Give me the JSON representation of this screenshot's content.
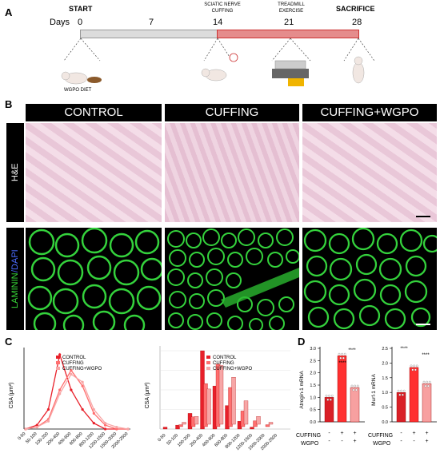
{
  "panelA": {
    "letter": "A",
    "start": "START",
    "days_label": "Days",
    "ticks": [
      "0",
      "7",
      "14",
      "21",
      "28"
    ],
    "event_sciatic": "SCIATIC NERVE\nCUFFING",
    "event_treadmill": "TREADMILL\nEXERCISE",
    "event_sacrifice": "SACRIFICE",
    "diet": "WGPO DIET"
  },
  "panelB": {
    "letter": "B",
    "columns": [
      "CONTROL",
      "CUFFING",
      "CUFFING+WGPO"
    ],
    "row1_label": "H&E",
    "row2_label_a": "LAMININ",
    "row2_label_b": "/DAPI"
  },
  "panelC": {
    "letter": "C",
    "legend": [
      "CONTROL",
      "CUFFING",
      "CUFFING+WGPO"
    ],
    "ylabel": "CSA (μm²)",
    "colors": {
      "control": "#e8202a",
      "cuffing": "#ff6f6f",
      "wgpo": "#f7a6a6"
    }
  },
  "panelD": {
    "letter": "D",
    "chart1_ylabel": "Atrogin-1 mRNA",
    "chart2_ylabel": "Murf-1 mRNA",
    "row_cuffing": "CUFFING",
    "row_wgpo": "WGPO",
    "stars": "****"
  },
  "chart_data": [
    {
      "type": "line",
      "title": "",
      "xlabel": "",
      "ylabel": "CSA (μm²)",
      "categories": [
        "0-50",
        "50-100",
        "100-200",
        "200-400",
        "400-600",
        "600-800",
        "800-1200",
        "1200-1500",
        "1500-2000",
        "2000-2500"
      ],
      "series": [
        {
          "name": "CONTROL",
          "values": [
            0,
            2,
            10,
            38,
            20,
            10,
            3,
            0,
            0,
            0
          ]
        },
        {
          "name": "CUFFING",
          "values": [
            0,
            1,
            5,
            20,
            30,
            22,
            8,
            2,
            0,
            0
          ]
        },
        {
          "name": "CUFFING+WGPO",
          "values": [
            0,
            1,
            4,
            18,
            28,
            24,
            10,
            3,
            1,
            0
          ]
        }
      ]
    },
    {
      "type": "bar",
      "title": "",
      "xlabel": "",
      "ylabel": "CSA (μm²)",
      "categories": [
        "0-50",
        "50-100",
        "100-200",
        "200-400",
        "400-600",
        "600-800",
        "800-1200",
        "1200-1500",
        "1500-2000",
        "2000-2500"
      ],
      "ylim": [
        0,
        40
      ],
      "series": [
        {
          "name": "CONTROL",
          "values": [
            1,
            2,
            8,
            40,
            22,
            12,
            4,
            1,
            0,
            0
          ]
        },
        {
          "name": "CUFFING",
          "values": [
            0,
            1,
            5,
            22,
            32,
            20,
            8,
            3,
            1,
            0
          ]
        },
        {
          "name": "CUFFING+WGPO",
          "values": [
            0,
            1,
            4,
            18,
            30,
            24,
            12,
            4,
            1,
            0
          ]
        }
      ]
    },
    {
      "type": "bar",
      "ylabel": "Atrogin-1 mRNA",
      "categories": [
        "1",
        "2",
        "3"
      ],
      "values": [
        1.0,
        2.7,
        1.4
      ],
      "ylim": [
        0,
        3.0
      ],
      "ticks": [
        "0.0",
        "0.5",
        "1.0",
        "1.5",
        "2.0",
        "2.5",
        "3.0"
      ],
      "cuffing": [
        "-",
        "+",
        "+"
      ],
      "wgpo": [
        "-",
        "-",
        "+"
      ]
    },
    {
      "type": "bar",
      "ylabel": "Murf-1 mRNA",
      "categories": [
        "1",
        "2",
        "3"
      ],
      "values": [
        1.0,
        1.85,
        1.3
      ],
      "ylim": [
        0,
        2.5
      ],
      "ticks": [
        "0.0",
        "0.5",
        "1.0",
        "1.5",
        "2.0",
        "2.5"
      ],
      "cuffing": [
        "-",
        "+",
        "+"
      ],
      "wgpo": [
        "-",
        "-",
        "+"
      ]
    }
  ]
}
